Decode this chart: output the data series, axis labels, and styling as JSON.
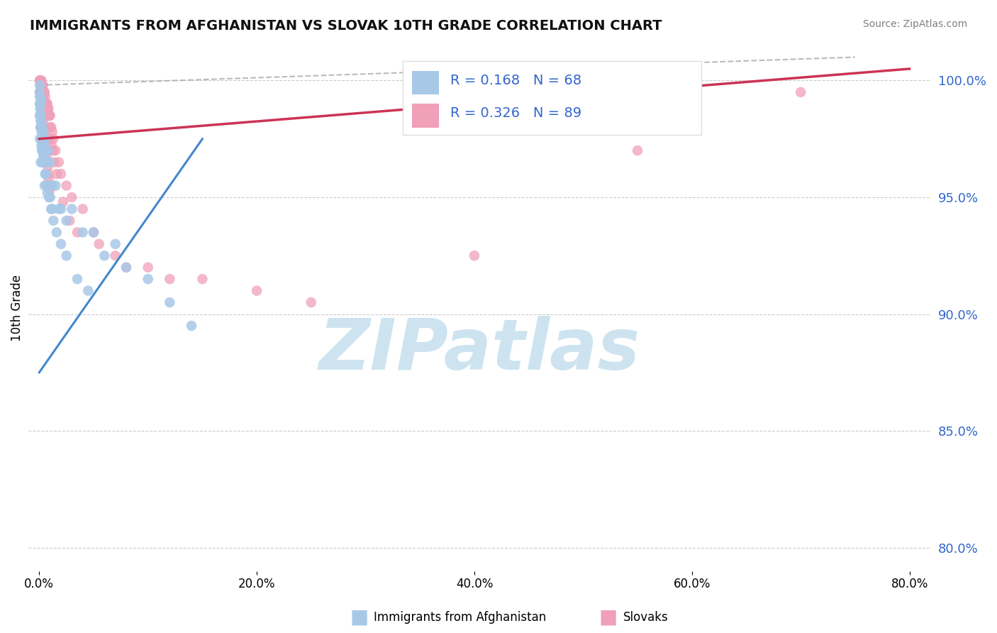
{
  "title": "IMMIGRANTS FROM AFGHANISTAN VS SLOVAK 10TH GRADE CORRELATION CHART",
  "source_text": "Source: ZipAtlas.com",
  "ylabel": "10th Grade",
  "x_tick_labels": [
    "0.0%",
    "20.0%",
    "40.0%",
    "60.0%",
    "80.0%"
  ],
  "x_tick_values": [
    0,
    20,
    40,
    60,
    80
  ],
  "y_right_labels": [
    "100.0%",
    "95.0%",
    "90.0%",
    "85.0%",
    "80.0%"
  ],
  "y_right_values": [
    100.0,
    95.0,
    90.0,
    85.0,
    80.0
  ],
  "xlim": [
    -1,
    82
  ],
  "ylim": [
    79,
    101.5
  ],
  "legend_entries": [
    {
      "label": "Immigrants from Afghanistan",
      "color": "#a8c8e8",
      "R": 0.168,
      "N": 68
    },
    {
      "label": "Slovaks",
      "color": "#f0a0b8",
      "R": 0.326,
      "N": 89
    }
  ],
  "blue_scatter_color": "#a8c8e8",
  "pink_scatter_color": "#f0a0b8",
  "blue_line_color": "#4488cc",
  "pink_line_color": "#cc3355",
  "dashed_line_color": "#aaaaaa",
  "grid_color": "#cccccc",
  "title_color": "#111111",
  "watermark_color": "#cde4f0",
  "watermark_text": "ZIPatlas",
  "background_color": "#ffffff",
  "legend_R_label_color": "#3366cc",
  "blue_line_x0": 0,
  "blue_line_y0": 87.5,
  "blue_line_x1": 15,
  "blue_line_y1": 97.5,
  "pink_line_x0": 0,
  "pink_line_y0": 97.5,
  "pink_line_x1": 80,
  "pink_line_y1": 100.5,
  "dash_line_x0": 0,
  "dash_line_y0": 99.8,
  "dash_line_x1": 75,
  "dash_line_y1": 101.0,
  "blue_scatter_x": [
    0.05,
    0.05,
    0.07,
    0.07,
    0.1,
    0.1,
    0.15,
    0.15,
    0.15,
    0.2,
    0.2,
    0.2,
    0.25,
    0.25,
    0.3,
    0.3,
    0.35,
    0.4,
    0.4,
    0.45,
    0.5,
    0.5,
    0.5,
    0.6,
    0.6,
    0.7,
    0.8,
    0.8,
    1.0,
    1.0,
    1.2,
    1.2,
    1.5,
    1.8,
    2.0,
    2.5,
    3.0,
    4.0,
    5.0,
    6.0,
    7.0,
    8.0,
    10.0,
    12.0,
    14.0,
    0.05,
    0.08,
    0.12,
    0.18,
    0.22,
    0.28,
    0.32,
    0.38,
    0.45,
    0.55,
    0.65,
    0.75,
    0.9,
    1.1,
    1.3,
    1.6,
    2.0,
    2.5,
    3.5,
    4.5,
    0.06,
    0.09,
    0.13
  ],
  "blue_scatter_y": [
    99.5,
    98.5,
    99.8,
    97.5,
    99.0,
    98.0,
    98.5,
    97.5,
    96.5,
    99.2,
    98.2,
    97.2,
    98.0,
    97.0,
    97.5,
    96.5,
    97.0,
    97.8,
    96.8,
    97.3,
    97.5,
    96.5,
    95.5,
    97.0,
    96.0,
    96.5,
    97.0,
    95.5,
    96.5,
    95.0,
    95.5,
    94.5,
    95.5,
    94.5,
    94.5,
    94.0,
    94.5,
    93.5,
    93.5,
    92.5,
    93.0,
    92.0,
    91.5,
    90.5,
    89.5,
    99.3,
    98.8,
    98.5,
    98.0,
    97.8,
    97.3,
    97.0,
    96.8,
    96.5,
    96.0,
    95.5,
    95.2,
    95.0,
    94.5,
    94.0,
    93.5,
    93.0,
    92.5,
    91.5,
    91.0,
    99.0,
    98.5,
    98.3
  ],
  "pink_scatter_x": [
    0.05,
    0.05,
    0.07,
    0.07,
    0.1,
    0.1,
    0.1,
    0.15,
    0.15,
    0.15,
    0.2,
    0.2,
    0.2,
    0.25,
    0.25,
    0.25,
    0.3,
    0.3,
    0.35,
    0.35,
    0.4,
    0.4,
    0.45,
    0.45,
    0.5,
    0.5,
    0.5,
    0.55,
    0.6,
    0.6,
    0.65,
    0.7,
    0.7,
    0.75,
    0.8,
    0.85,
    0.9,
    0.95,
    1.0,
    1.0,
    1.1,
    1.2,
    1.3,
    1.5,
    1.8,
    2.0,
    2.5,
    3.0,
    4.0,
    5.0,
    7.0,
    10.0,
    15.0,
    20.0,
    25.0,
    40.0,
    55.0,
    70.0,
    0.06,
    0.08,
    0.12,
    0.16,
    0.22,
    0.28,
    0.32,
    0.38,
    0.42,
    0.48,
    0.52,
    0.58,
    0.62,
    0.68,
    0.73,
    0.78,
    0.83,
    0.88,
    0.93,
    0.97,
    1.05,
    1.15,
    1.25,
    1.4,
    1.6,
    2.2,
    2.8,
    3.5,
    5.5,
    8.0,
    12.0
  ],
  "pink_scatter_y": [
    100.0,
    99.5,
    100.0,
    99.0,
    100.0,
    99.5,
    99.0,
    100.0,
    99.5,
    99.0,
    100.0,
    99.5,
    99.0,
    99.8,
    99.3,
    98.8,
    99.8,
    99.3,
    99.8,
    99.3,
    99.5,
    99.0,
    99.5,
    99.0,
    99.5,
    99.0,
    98.5,
    99.3,
    99.0,
    98.5,
    99.0,
    99.0,
    98.5,
    99.0,
    98.8,
    98.8,
    98.5,
    98.5,
    98.5,
    98.0,
    98.0,
    97.8,
    97.5,
    97.0,
    96.5,
    96.0,
    95.5,
    95.0,
    94.5,
    93.5,
    92.5,
    92.0,
    91.5,
    91.0,
    90.5,
    92.5,
    97.0,
    99.5,
    100.0,
    99.8,
    99.5,
    99.3,
    99.0,
    98.8,
    98.5,
    98.3,
    98.0,
    97.8,
    97.5,
    97.3,
    97.0,
    96.8,
    96.5,
    96.3,
    96.0,
    95.8,
    95.5,
    95.3,
    97.5,
    97.2,
    97.0,
    96.5,
    96.0,
    94.8,
    94.0,
    93.5,
    93.0,
    92.0,
    91.5
  ]
}
